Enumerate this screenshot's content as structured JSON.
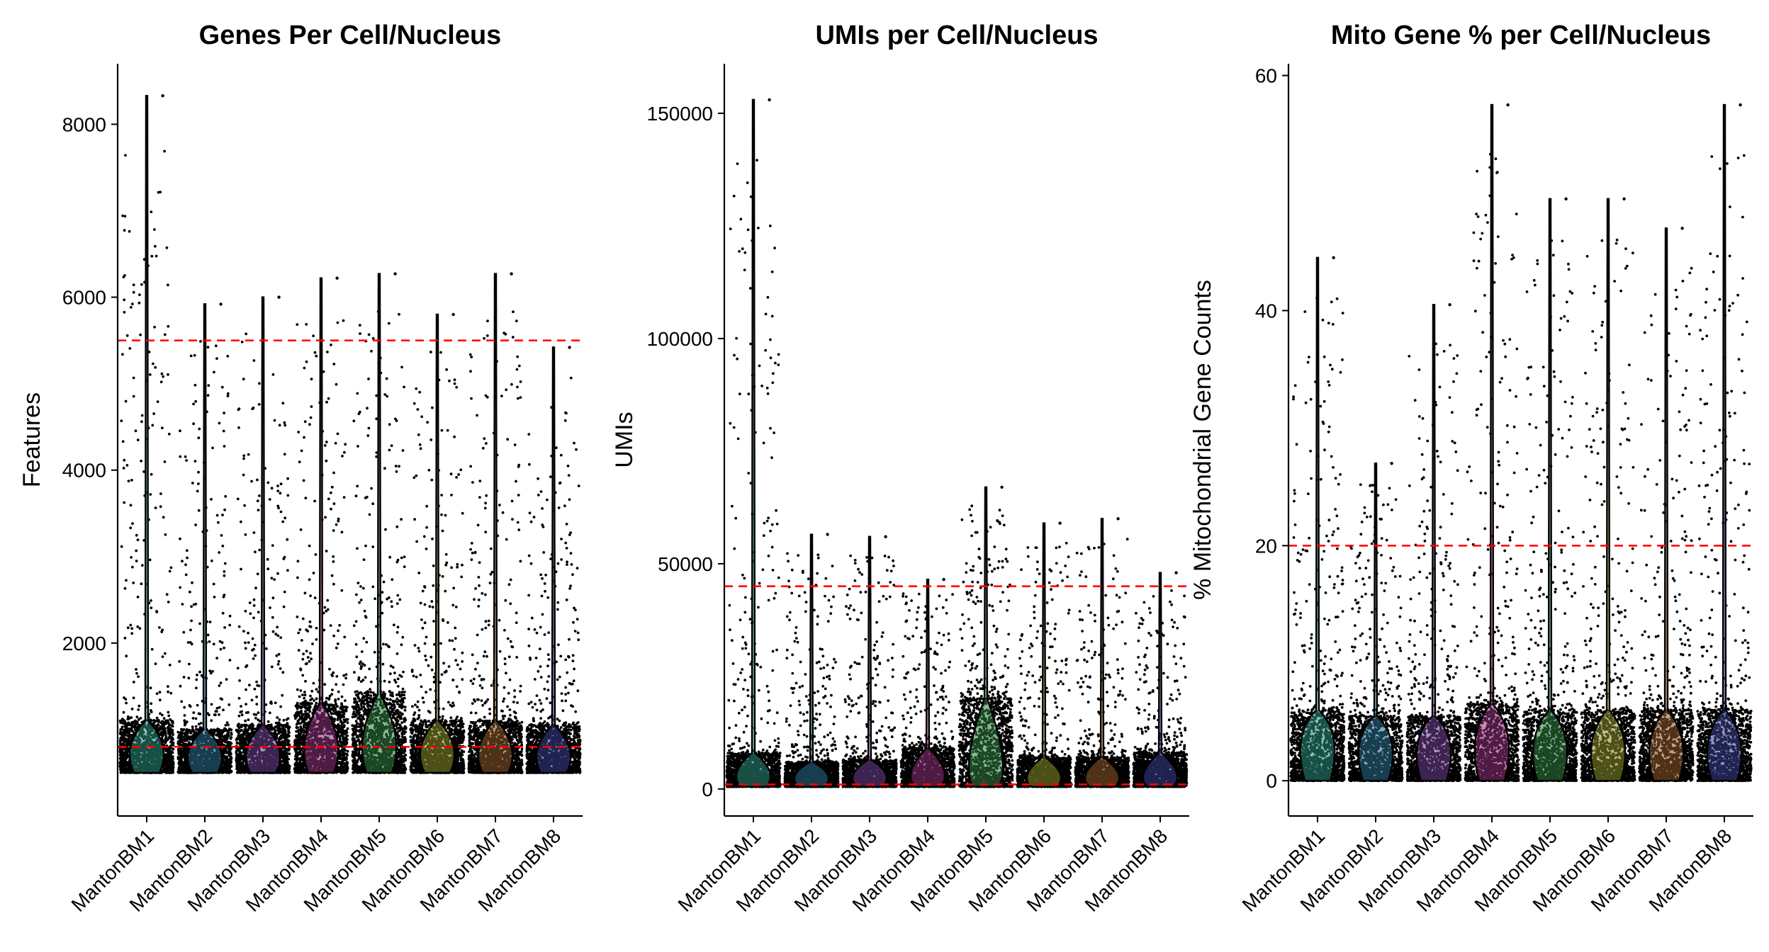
{
  "chart_data": [
    {
      "type": "violin",
      "title": "Genes Per Cell/Nucleus",
      "xlabel": "",
      "ylabel": "Features",
      "ylim": [
        0,
        8700
      ],
      "yticks": [
        2000,
        4000,
        6000,
        8000
      ],
      "categories": [
        "MantonBM1",
        "MantonBM2",
        "MantonBM3",
        "MantonBM4",
        "MantonBM5",
        "MantonBM6",
        "MantonBM7",
        "MantonBM8"
      ],
      "point_color": "#000000",
      "thresholds": [
        {
          "value": 800,
          "color": "#ff0000",
          "style": "dashed"
        },
        {
          "value": 5500,
          "color": "#ff0000",
          "style": "dashed"
        }
      ],
      "series": [
        {
          "name": "MantonBM1",
          "min": 500,
          "median": 800,
          "q3": 1100,
          "max": 8330,
          "color": "#2a8f7e"
        },
        {
          "name": "MantonBM2",
          "min": 500,
          "median": 750,
          "q3": 1000,
          "max": 5920,
          "color": "#2a6f8f"
        },
        {
          "name": "MantonBM3",
          "min": 500,
          "median": 760,
          "q3": 1050,
          "max": 6000,
          "color": "#6f3f8f"
        },
        {
          "name": "MantonBM4",
          "min": 500,
          "median": 850,
          "q3": 1300,
          "max": 6220,
          "color": "#8f2f7a"
        },
        {
          "name": "MantonBM5",
          "min": 500,
          "median": 900,
          "q3": 1400,
          "max": 6270,
          "color": "#2f7f3f"
        },
        {
          "name": "MantonBM6",
          "min": 500,
          "median": 800,
          "q3": 1100,
          "max": 5800,
          "color": "#8a8f2a"
        },
        {
          "name": "MantonBM7",
          "min": 500,
          "median": 780,
          "q3": 1100,
          "max": 6270,
          "color": "#8f5a2a"
        },
        {
          "name": "MantonBM8",
          "min": 500,
          "median": 750,
          "q3": 1050,
          "max": 5420,
          "color": "#3a3f8f"
        }
      ]
    },
    {
      "type": "violin",
      "title": "UMIs per Cell/Nucleus",
      "xlabel": "",
      "ylabel": "UMIs",
      "ylim": [
        -6000,
        161000
      ],
      "yticks": [
        0,
        50000,
        100000,
        150000
      ],
      "categories": [
        "MantonBM1",
        "MantonBM2",
        "MantonBM3",
        "MantonBM4",
        "MantonBM5",
        "MantonBM6",
        "MantonBM7",
        "MantonBM8"
      ],
      "point_color": "#000000",
      "thresholds": [
        {
          "value": 1000,
          "color": "#ff0000",
          "style": "dashed"
        },
        {
          "value": 45000,
          "color": "#ff0000",
          "style": "dashed"
        }
      ],
      "series": [
        {
          "name": "MantonBM1",
          "min": 500,
          "median": 3500,
          "q3": 8000,
          "max": 153000,
          "color": "#2a8f7e"
        },
        {
          "name": "MantonBM2",
          "min": 500,
          "median": 3000,
          "q3": 6000,
          "max": 56500,
          "color": "#2a6f8f"
        },
        {
          "name": "MantonBM3",
          "min": 500,
          "median": 3000,
          "q3": 6500,
          "max": 56000,
          "color": "#6f3f8f"
        },
        {
          "name": "MantonBM4",
          "min": 500,
          "median": 3500,
          "q3": 9000,
          "max": 46500,
          "color": "#8f2f7a"
        },
        {
          "name": "MantonBM5",
          "min": 500,
          "median": 5000,
          "q3": 20000,
          "max": 67000,
          "color": "#2f7f3f"
        },
        {
          "name": "MantonBM6",
          "min": 500,
          "median": 3000,
          "q3": 7000,
          "max": 59000,
          "color": "#8a8f2a"
        },
        {
          "name": "MantonBM7",
          "min": 500,
          "median": 3000,
          "q3": 7000,
          "max": 60000,
          "color": "#8f5a2a"
        },
        {
          "name": "MantonBM8",
          "min": 500,
          "median": 3000,
          "q3": 8000,
          "max": 48000,
          "color": "#3a3f8f"
        }
      ]
    },
    {
      "type": "violin",
      "title": "Mito Gene % per Cell/Nucleus",
      "xlabel": "",
      "ylabel": "% Mitochondrial Gene Counts",
      "ylim": [
        -3,
        61
      ],
      "yticks": [
        0,
        20,
        40,
        60
      ],
      "categories": [
        "MantonBM1",
        "MantonBM2",
        "MantonBM3",
        "MantonBM4",
        "MantonBM5",
        "MantonBM6",
        "MantonBM7",
        "MantonBM8"
      ],
      "point_color": "#000000",
      "thresholds": [
        {
          "value": 20,
          "color": "#ff0000",
          "style": "dashed"
        }
      ],
      "series": [
        {
          "name": "MantonBM1",
          "min": 0,
          "median": 4,
          "q3": 6,
          "max": 44.5,
          "color": "#2a8f7e"
        },
        {
          "name": "MantonBM2",
          "min": 0,
          "median": 3.5,
          "q3": 5.5,
          "max": 27,
          "color": "#2a6f8f"
        },
        {
          "name": "MantonBM3",
          "min": 0,
          "median": 3.5,
          "q3": 5.5,
          "max": 40.5,
          "color": "#6f3f8f"
        },
        {
          "name": "MantonBM4",
          "min": 0,
          "median": 4,
          "q3": 6.5,
          "max": 57.5,
          "color": "#8f2f7a"
        },
        {
          "name": "MantonBM5",
          "min": 0,
          "median": 3.5,
          "q3": 6,
          "max": 49.5,
          "color": "#2f7f3f"
        },
        {
          "name": "MantonBM6",
          "min": 0,
          "median": 3.5,
          "q3": 6,
          "max": 49.5,
          "color": "#8a8f2a"
        },
        {
          "name": "MantonBM7",
          "min": 0,
          "median": 3.5,
          "q3": 6,
          "max": 47,
          "color": "#8f5a2a"
        },
        {
          "name": "MantonBM8",
          "min": 0,
          "median": 3.5,
          "q3": 6,
          "max": 57.5,
          "color": "#3a3f8f"
        }
      ]
    }
  ]
}
